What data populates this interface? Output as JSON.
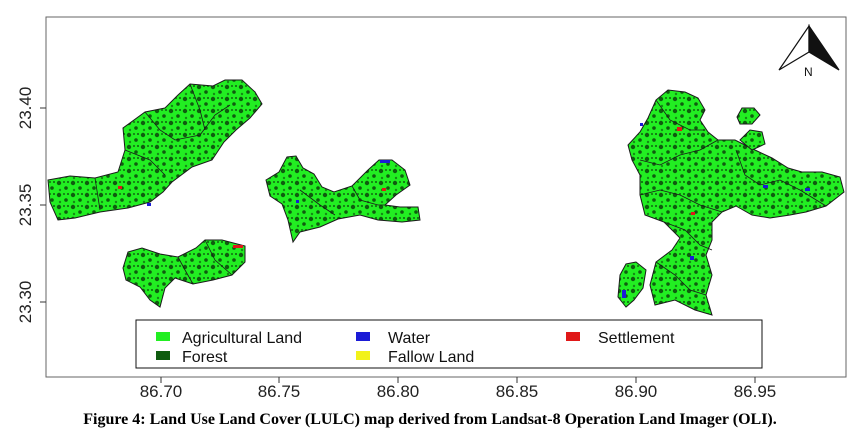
{
  "map": {
    "x_ticks": [
      "86.70",
      "86.75",
      "86.80",
      "86.85",
      "86.90",
      "86.95"
    ],
    "y_ticks": [
      "23.30",
      "23.35",
      "23.40"
    ],
    "north_label": "N"
  },
  "legend": {
    "items": [
      {
        "label": "Agricultural Land",
        "color": "#22ee22"
      },
      {
        "label": "Forest",
        "color": "#0f5c0f"
      },
      {
        "label": "Water",
        "color": "#1b1bd6"
      },
      {
        "label": "Fallow Land",
        "color": "#f2f21a"
      },
      {
        "label": "Settlement",
        "color": "#e01818"
      }
    ]
  },
  "caption": "Figure 4: Land Use Land Cover (LULC) map derived from Landsat-8 Operation Land Imager (OLI)."
}
